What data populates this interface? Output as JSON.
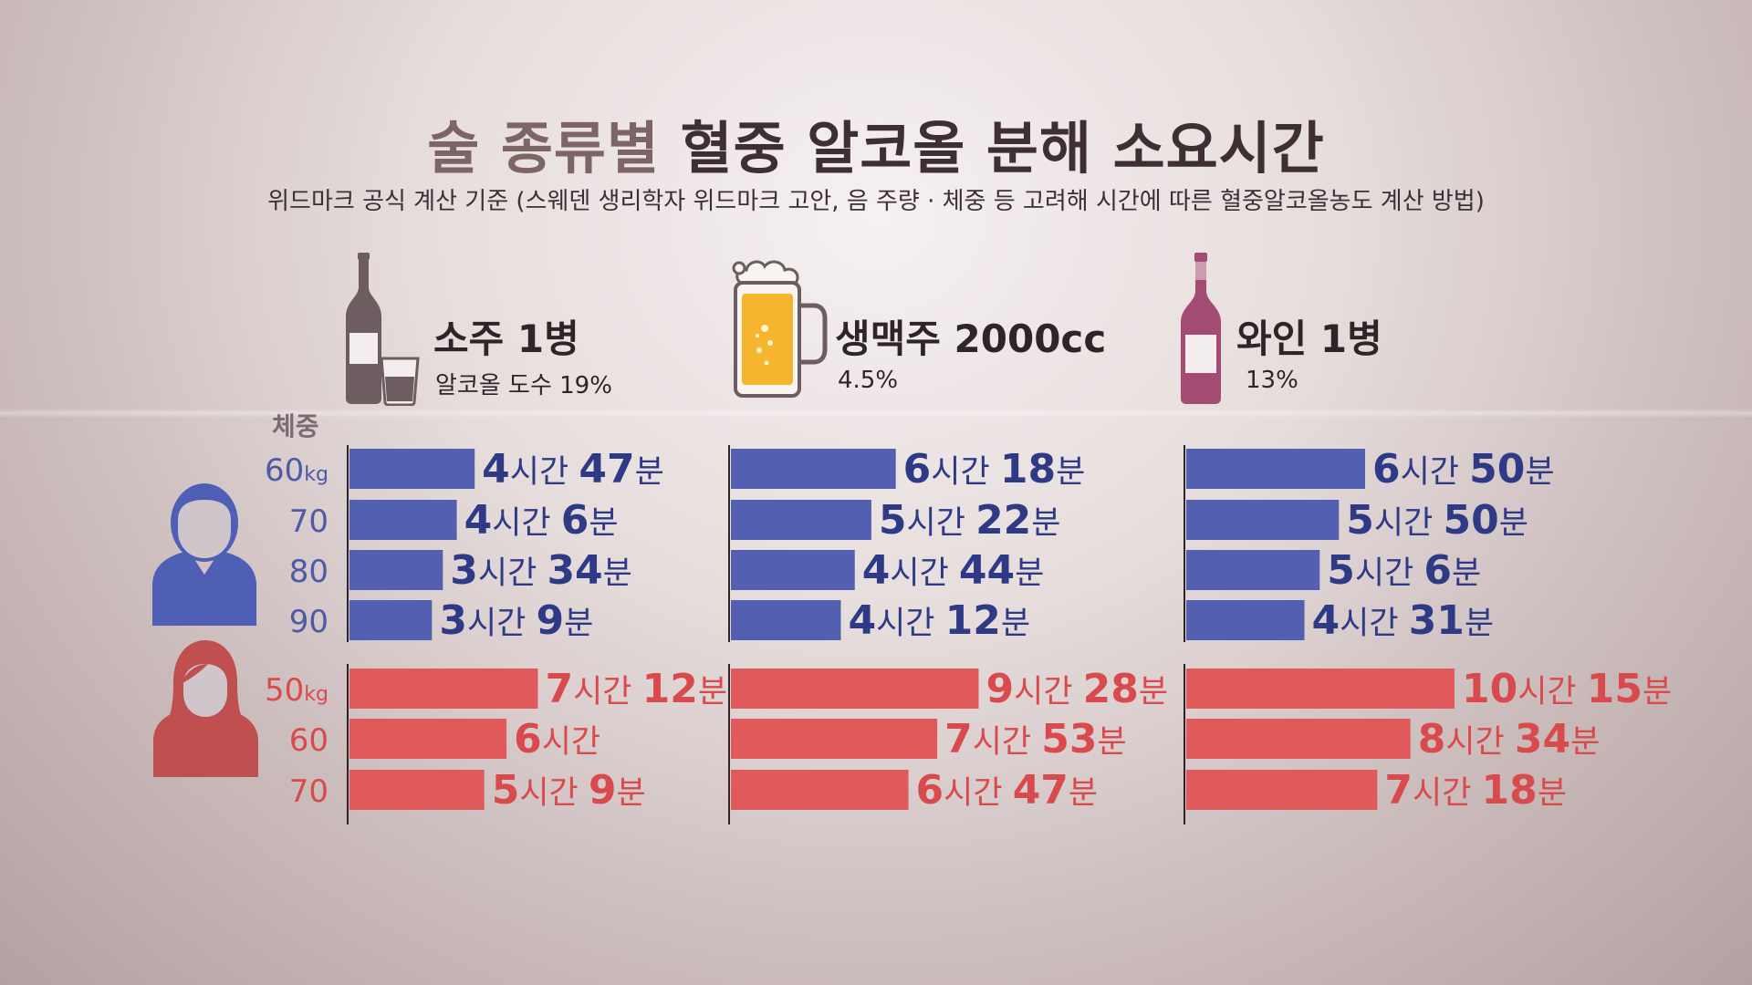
{
  "title": {
    "part1": "술 종류별",
    "part2": "혈중 알코올 분해 소요시간"
  },
  "subtitle": "위드마크  공식 계산 기준 (스웨덴 생리학자 위드마크 고안, 음 주량 · 체중 등 고려해 시간에 따른 혈중알코올농도 계산 방법)",
  "drinks": [
    {
      "name": "소주 1병",
      "abv": "알코올 도수 19%",
      "icon": "soju-bottle-icon"
    },
    {
      "name": "생맥주 2000cc",
      "abv": "4.5%",
      "icon": "beer-mug-icon"
    },
    {
      "name": "와인 1병",
      "abv": "13%",
      "icon": "wine-bottle-icon"
    }
  ],
  "weight_header": "체중",
  "colors": {
    "male": "#5360b2",
    "female": "#e05a5c",
    "male_label": "#4e5aa6",
    "female_label": "#d94a4d",
    "male_icon": "#4f5fb5",
    "female_icon": "#c0504f"
  },
  "chart_data": {
    "type": "bar",
    "orientation": "horizontal",
    "value_unit": "minutes",
    "groups": [
      {
        "name": "male",
        "icon": "male-person-icon",
        "weights": [
          "60",
          "70",
          "80",
          "90"
        ],
        "weight_units": [
          "kg",
          "",
          "",
          ""
        ]
      },
      {
        "name": "female",
        "icon": "female-person-icon",
        "weights": [
          "50",
          "60",
          "70"
        ],
        "weight_units": [
          "kg",
          "",
          ""
        ]
      }
    ],
    "series": [
      {
        "name": "소주 1병",
        "male": [
          287,
          246,
          214,
          189
        ],
        "female": [
          432,
          360,
          309
        ],
        "male_labels": [
          [
            "4",
            "시간 ",
            "47",
            "분"
          ],
          [
            "4",
            "시간 ",
            "6",
            "분"
          ],
          [
            "3",
            "시간 ",
            "34",
            "분"
          ],
          [
            "3",
            "시간 ",
            "9",
            "분"
          ]
        ],
        "female_labels": [
          [
            "7",
            "시간 ",
            "12",
            "분"
          ],
          [
            "6",
            "시간",
            "",
            ""
          ],
          [
            "5",
            "시간 ",
            "9",
            "분"
          ]
        ]
      },
      {
        "name": "생맥주 2000cc",
        "male": [
          378,
          322,
          284,
          252
        ],
        "female": [
          568,
          473,
          407
        ],
        "male_labels": [
          [
            "6",
            "시간 ",
            "18",
            "분"
          ],
          [
            "5",
            "시간 ",
            "22",
            "분"
          ],
          [
            "4",
            "시간 ",
            "44",
            "분"
          ],
          [
            "4",
            "시간 ",
            "12",
            "분"
          ]
        ],
        "female_labels": [
          [
            "9",
            "시간 ",
            "28",
            "분"
          ],
          [
            "7",
            "시간 ",
            "53",
            "분"
          ],
          [
            "6",
            "시간 ",
            "47",
            "분"
          ]
        ]
      },
      {
        "name": "와인 1병",
        "male": [
          410,
          350,
          306,
          271
        ],
        "female": [
          615,
          514,
          438
        ],
        "male_labels": [
          [
            "6",
            "시간 ",
            "50",
            "분"
          ],
          [
            "5",
            "시간 ",
            "50",
            "분"
          ],
          [
            "5",
            "시간 ",
            "6",
            "분"
          ],
          [
            "4",
            "시간 ",
            "31",
            "분"
          ]
        ],
        "female_labels": [
          [
            "10",
            "시간 ",
            "15",
            "분"
          ],
          [
            "8",
            "시간 ",
            "34",
            "분"
          ],
          [
            "7",
            "시간 ",
            "18",
            "분"
          ]
        ]
      }
    ]
  }
}
